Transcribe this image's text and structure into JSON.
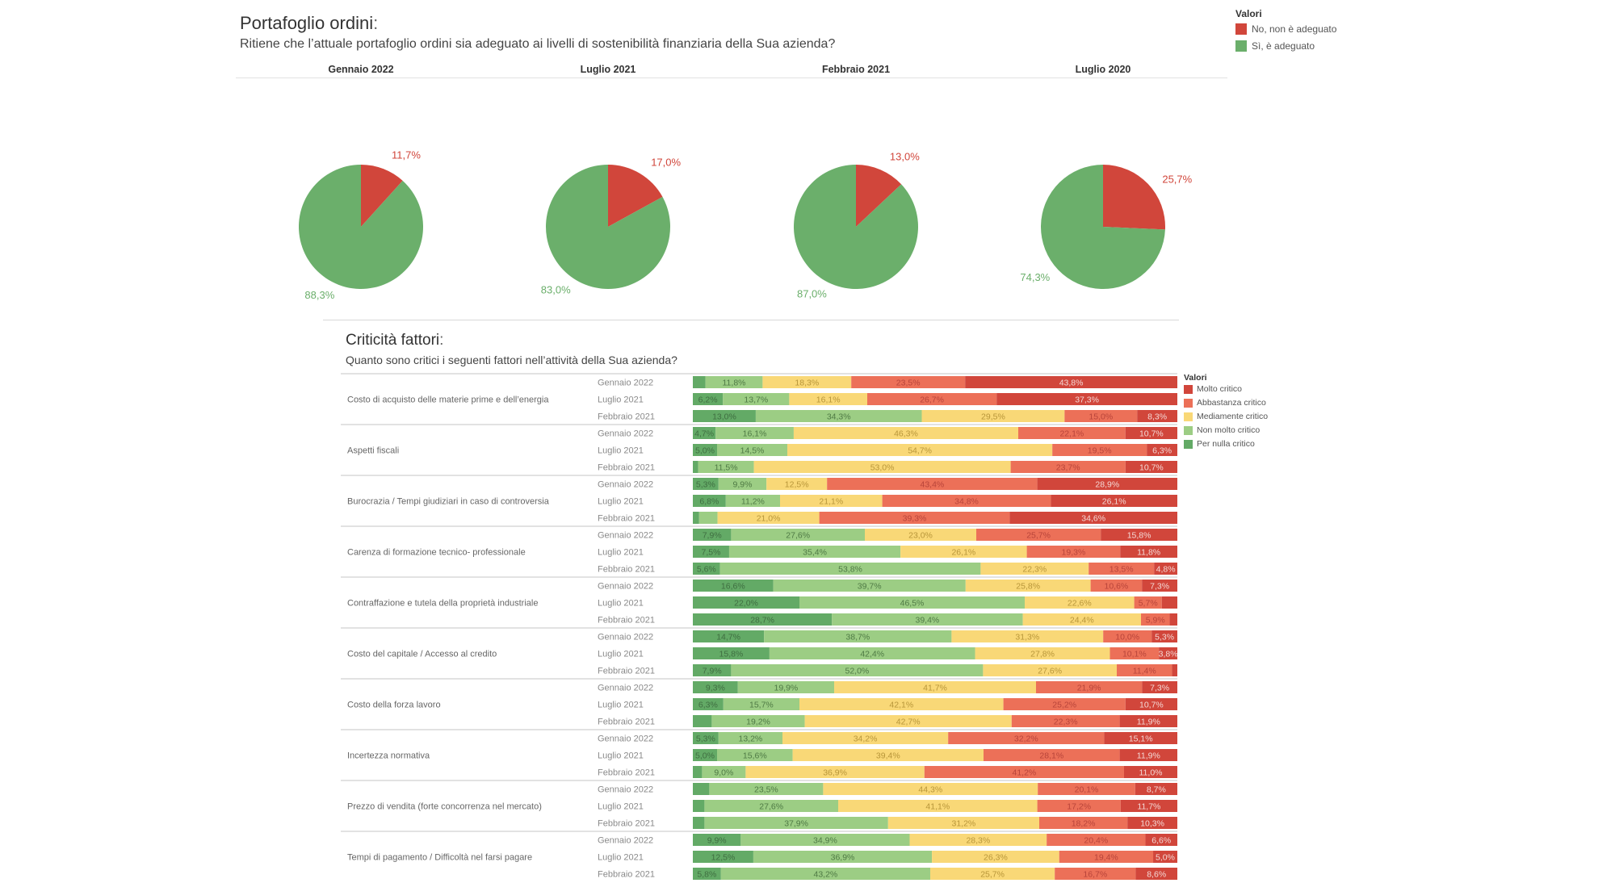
{
  "section1": {
    "title": "Portafoglio ordini",
    "colon": ":",
    "subtitle": "Ritiene che l’attuale portafoglio ordini sia adeguato ai livelli di sostenibilità finanziaria della Sua azienda?"
  },
  "section2": {
    "title": "Criticità fattori",
    "colon": ":",
    "subtitle": "Quanto sono critici i seguenti fattori nell’attività della Sua azienda?"
  },
  "legend1": {
    "title": "Valori",
    "items": [
      {
        "label": "No, non è adeguato",
        "color": "#d1463b"
      },
      {
        "label": "Sì, è adeguato",
        "color": "#6baf6b"
      }
    ]
  },
  "legend2": {
    "title": "Valori",
    "items": [
      {
        "label": "Molto critico",
        "color": "#d1463b"
      },
      {
        "label": "Abbastanza critico",
        "color": "#ec7058"
      },
      {
        "label": "Mediamente critico",
        "color": "#f9d877"
      },
      {
        "label": "Non molto critico",
        "color": "#9ccd84"
      },
      {
        "label": "Per nulla critico",
        "color": "#63aa66"
      }
    ]
  },
  "chart_data": [
    {
      "type": "pie",
      "title": "Portafoglio ordini",
      "categories": [
        "No, non è adeguato",
        "Sì, è adeguato"
      ],
      "colors": [
        "#d1463b",
        "#6baf6b"
      ],
      "pies": [
        {
          "period": "Gennaio 2022",
          "values": [
            11.7,
            88.3
          ],
          "labels": [
            "11,7%",
            "88,3%"
          ]
        },
        {
          "period": "Luglio 2021",
          "values": [
            17.0,
            83.0
          ],
          "labels": [
            "17,0%",
            "83,0%"
          ]
        },
        {
          "period": "Febbraio 2021",
          "values": [
            13.0,
            87.0
          ],
          "labels": [
            "13,0%",
            "87,0%"
          ]
        },
        {
          "period": "Luglio 2020",
          "values": [
            25.7,
            74.3
          ],
          "labels": [
            "25,7%",
            "74,3%"
          ]
        }
      ]
    },
    {
      "type": "bar",
      "orientation": "horizontal-stacked-100",
      "title": "Criticità fattori",
      "series_names": [
        "Per nulla critico",
        "Non molto critico",
        "Mediamente critico",
        "Abbastanza critico",
        "Molto critico"
      ],
      "series_colors": [
        "#63aa66",
        "#9ccd84",
        "#f9d877",
        "#ec7058",
        "#d1463b"
      ],
      "label_colors": [
        "#3f6e41",
        "#4f7a45",
        "#b8963a",
        "#b8443a",
        "#f4d9d6"
      ],
      "groups": [
        {
          "category": "Costo di acquisto delle materie prime e dell’energia",
          "rows": [
            {
              "period": "Gennaio 2022",
              "values": [
                2.6,
                11.8,
                18.3,
                23.5,
                43.8
              ],
              "labels": [
                "",
                "11,8%",
                "18,3%",
                "23,5%",
                "43,8%"
              ]
            },
            {
              "period": "Luglio 2021",
              "values": [
                6.2,
                13.7,
                16.1,
                26.7,
                37.3
              ],
              "labels": [
                "6,2%",
                "13,7%",
                "16,1%",
                "26,7%",
                "37,3%"
              ]
            },
            {
              "period": "Febbraio 2021",
              "values": [
                13.0,
                34.3,
                29.5,
                15.0,
                8.3
              ],
              "labels": [
                "13,0%",
                "34,3%",
                "29,5%",
                "15,0%",
                "8,3%"
              ]
            }
          ]
        },
        {
          "category": "Aspetti fiscali",
          "rows": [
            {
              "period": "Gennaio 2022",
              "values": [
                4.7,
                16.1,
                46.3,
                22.1,
                10.7
              ],
              "labels": [
                "4,7%",
                "16,1%",
                "46,3%",
                "22,1%",
                "10,7%"
              ]
            },
            {
              "period": "Luglio 2021",
              "values": [
                5.0,
                14.5,
                54.7,
                19.5,
                6.3
              ],
              "labels": [
                "5,0%",
                "14,5%",
                "54,7%",
                "19,5%",
                "6,3%"
              ]
            },
            {
              "period": "Febbraio 2021",
              "values": [
                1.1,
                11.5,
                53.0,
                23.7,
                10.7
              ],
              "labels": [
                "",
                "11,5%",
                "53,0%",
                "23,7%",
                "10,7%"
              ]
            }
          ]
        },
        {
          "category": "Burocrazia / Tempi giudiziari in caso di controversia",
          "rows": [
            {
              "period": "Gennaio 2022",
              "values": [
                5.3,
                9.9,
                12.5,
                43.4,
                28.9
              ],
              "labels": [
                "5,3%",
                "9,9%",
                "12,5%",
                "43,4%",
                "28,9%"
              ]
            },
            {
              "period": "Luglio 2021",
              "values": [
                6.8,
                11.2,
                21.1,
                34.8,
                26.1
              ],
              "labels": [
                "6,8%",
                "11,2%",
                "21,1%",
                "34,8%",
                "26,1%"
              ]
            },
            {
              "period": "Febbraio 2021",
              "values": [
                1.3,
                3.8,
                21.0,
                39.3,
                34.6
              ],
              "labels": [
                "",
                "",
                "21,0%",
                "39,3%",
                "34,6%"
              ]
            }
          ]
        },
        {
          "category": "Carenza di formazione tecnico- professionale",
          "rows": [
            {
              "period": "Gennaio 2022",
              "values": [
                7.9,
                27.6,
                23.0,
                25.7,
                15.8
              ],
              "labels": [
                "7,9%",
                "27,6%",
                "23,0%",
                "25,7%",
                "15,8%"
              ]
            },
            {
              "period": "Luglio 2021",
              "values": [
                7.5,
                35.4,
                26.1,
                19.3,
                11.8
              ],
              "labels": [
                "7,5%",
                "35,4%",
                "26,1%",
                "19,3%",
                "11,8%"
              ]
            },
            {
              "period": "Febbraio 2021",
              "values": [
                5.6,
                53.8,
                22.3,
                13.5,
                4.8
              ],
              "labels": [
                "5,6%",
                "53,8%",
                "22,3%",
                "13,5%",
                "4,8%"
              ]
            }
          ]
        },
        {
          "category": "Contraffazione e tutela della proprietà industriale",
          "rows": [
            {
              "period": "Gennaio 2022",
              "values": [
                16.6,
                39.7,
                25.8,
                10.6,
                7.3
              ],
              "labels": [
                "16,6%",
                "39,7%",
                "25,8%",
                "10,6%",
                "7,3%"
              ]
            },
            {
              "period": "Luglio 2021",
              "values": [
                22.0,
                46.5,
                22.6,
                5.7,
                3.2
              ],
              "labels": [
                "22,0%",
                "46,5%",
                "22,6%",
                "5,7%",
                ""
              ]
            },
            {
              "period": "Febbraio 2021",
              "values": [
                28.7,
                39.4,
                24.4,
                5.9,
                1.6
              ],
              "labels": [
                "28,7%",
                "39,4%",
                "24,4%",
                "5,9%",
                ""
              ]
            }
          ]
        },
        {
          "category": "Costo del capitale / Accesso al credito",
          "rows": [
            {
              "period": "Gennaio 2022",
              "values": [
                14.7,
                38.7,
                31.3,
                10.0,
                5.3
              ],
              "labels": [
                "14,7%",
                "38,7%",
                "31,3%",
                "10,0%",
                "5,3%"
              ]
            },
            {
              "period": "Luglio 2021",
              "values": [
                15.8,
                42.4,
                27.8,
                10.1,
                3.8
              ],
              "labels": [
                "15,8%",
                "42,4%",
                "27,8%",
                "10,1%",
                "3,8%"
              ]
            },
            {
              "period": "Febbraio 2021",
              "values": [
                7.9,
                52.0,
                27.6,
                11.4,
                1.1
              ],
              "labels": [
                "7,9%",
                "52,0%",
                "27,6%",
                "11,4%",
                ""
              ]
            }
          ]
        },
        {
          "category": "Costo della forza lavoro",
          "rows": [
            {
              "period": "Gennaio 2022",
              "values": [
                9.3,
                19.9,
                41.7,
                21.9,
                7.3
              ],
              "labels": [
                "9,3%",
                "19,9%",
                "41,7%",
                "21,9%",
                "7,3%"
              ]
            },
            {
              "period": "Luglio 2021",
              "values": [
                6.3,
                15.7,
                42.1,
                25.2,
                10.7
              ],
              "labels": [
                "6,3%",
                "15,7%",
                "42,1%",
                "25,2%",
                "10,7%"
              ]
            },
            {
              "period": "Febbraio 2021",
              "values": [
                3.9,
                19.2,
                42.7,
                22.3,
                11.9
              ],
              "labels": [
                "",
                "19,2%",
                "42,7%",
                "22,3%",
                "11,9%"
              ]
            }
          ]
        },
        {
          "category": "Incertezza normativa",
          "rows": [
            {
              "period": "Gennaio 2022",
              "values": [
                5.3,
                13.2,
                34.2,
                32.2,
                15.1
              ],
              "labels": [
                "5,3%",
                "13,2%",
                "34,2%",
                "32,2%",
                "15,1%"
              ]
            },
            {
              "period": "Luglio 2021",
              "values": [
                5.0,
                15.6,
                39.4,
                28.1,
                11.9
              ],
              "labels": [
                "5,0%",
                "15,6%",
                "39,4%",
                "28,1%",
                "11,9%"
              ]
            },
            {
              "period": "Febbraio 2021",
              "values": [
                1.9,
                9.0,
                36.9,
                41.2,
                11.0
              ],
              "labels": [
                "",
                "9,0%",
                "36,9%",
                "41,2%",
                "11,0%"
              ]
            }
          ]
        },
        {
          "category": "Prezzo di vendita (forte concorrenza nel mercato)",
          "rows": [
            {
              "period": "Gennaio 2022",
              "values": [
                3.4,
                23.5,
                44.3,
                20.1,
                8.7
              ],
              "labels": [
                "",
                "23,5%",
                "44,3%",
                "20,1%",
                "8,7%"
              ]
            },
            {
              "period": "Luglio 2021",
              "values": [
                2.4,
                27.6,
                41.1,
                17.2,
                11.7
              ],
              "labels": [
                "",
                "27,6%",
                "41,1%",
                "17,2%",
                "11,7%"
              ]
            },
            {
              "period": "Febbraio 2021",
              "values": [
                2.4,
                37.9,
                31.2,
                18.2,
                10.3
              ],
              "labels": [
                "",
                "37,9%",
                "31,2%",
                "18,2%",
                "10,3%"
              ]
            }
          ]
        },
        {
          "category": "Tempi di pagamento / Difficoltà nel farsi pagare",
          "rows": [
            {
              "period": "Gennaio 2022",
              "values": [
                9.9,
                34.9,
                28.3,
                20.4,
                6.6
              ],
              "labels": [
                "9,9%",
                "34,9%",
                "28,3%",
                "20,4%",
                "6,6%"
              ]
            },
            {
              "period": "Luglio 2021",
              "values": [
                12.5,
                36.9,
                26.3,
                19.4,
                5.0
              ],
              "labels": [
                "12,5%",
                "36,9%",
                "26,3%",
                "19,4%",
                "5,0%"
              ]
            },
            {
              "period": "Febbraio 2021",
              "values": [
                5.8,
                43.2,
                25.7,
                16.7,
                8.6
              ],
              "labels": [
                "5,8%",
                "43,2%",
                "25,7%",
                "16,7%",
                "8,6%"
              ]
            }
          ]
        }
      ]
    }
  ]
}
